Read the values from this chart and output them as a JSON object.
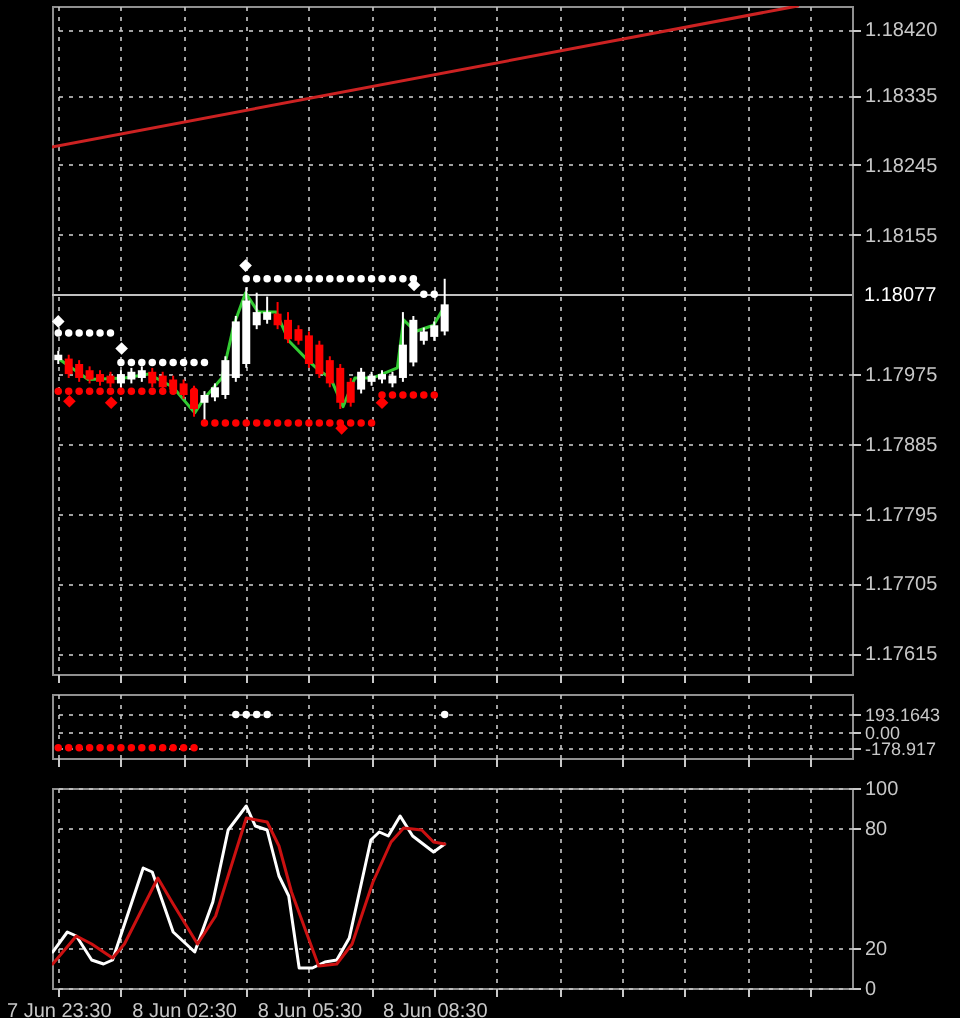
{
  "chart_data": [
    {
      "type": "candlestick",
      "x": [
        "--06-07T23:30",
        "--06-07T23:45",
        "--06-08T00:00",
        "--06-08T00:15",
        "--06-08T00:30",
        "--06-08T00:45",
        "--06-08T01:00",
        "--06-08T01:15",
        "--06-08T01:30",
        "--06-08T01:45",
        "--06-08T02:00",
        "--06-08T02:15",
        "--06-08T02:30",
        "--06-08T02:45",
        "--06-08T03:00",
        "--06-08T03:15",
        "--06-08T03:30",
        "--06-08T03:45",
        "--06-08T04:00",
        "--06-08T04:15",
        "--06-08T04:30",
        "--06-08T04:45",
        "--06-08T05:00",
        "--06-08T05:15",
        "--06-08T05:30",
        "--06-08T05:45",
        "--06-08T06:00",
        "--06-08T06:15",
        "--06-08T06:30",
        "--06-08T06:45",
        "--06-08T07:00",
        "--06-08T07:15",
        "--06-08T07:30",
        "--06-08T07:45",
        "--06-08T08:00",
        "--06-08T08:15",
        "--06-08T08:30",
        "--06-08T08:45"
      ],
      "ohlc": [
        [
          1.17993,
          1.18005,
          1.17988,
          1.18
        ],
        [
          1.17995,
          1.18,
          1.1797,
          1.17975
        ],
        [
          1.17988,
          1.17993,
          1.17965,
          1.1797
        ],
        [
          1.1798,
          1.17985,
          1.17963,
          1.17968
        ],
        [
          1.17975,
          1.1798,
          1.1796,
          1.17965
        ],
        [
          1.17973,
          1.17978,
          1.17958,
          1.17963
        ],
        [
          1.17963,
          1.1798,
          1.17958,
          1.17975
        ],
        [
          1.17968,
          1.17983,
          1.17963,
          1.17978
        ],
        [
          1.1797,
          1.17985,
          1.17965,
          1.1798
        ],
        [
          1.17978,
          1.17983,
          1.17958,
          1.17963
        ],
        [
          1.17973,
          1.17978,
          1.17953,
          1.17958
        ],
        [
          1.17968,
          1.17973,
          1.1795,
          1.17955
        ],
        [
          1.17963,
          1.17968,
          1.17943,
          1.17948
        ],
        [
          1.17955,
          1.1796,
          1.1792,
          1.1793
        ],
        [
          1.17938,
          1.17953,
          1.17913,
          1.17948
        ],
        [
          1.17945,
          1.17963,
          1.1794,
          1.17958
        ],
        [
          1.17948,
          1.17998,
          1.17943,
          1.17993
        ],
        [
          1.1797,
          1.1805,
          1.17965,
          1.18043
        ],
        [
          1.17988,
          1.18087,
          1.17983,
          1.1807
        ],
        [
          1.18038,
          1.1808,
          1.18033,
          1.18055
        ],
        [
          1.18045,
          1.18075,
          1.1804,
          1.18055
        ],
        [
          1.18053,
          1.18068,
          1.18033,
          1.18038
        ],
        [
          1.18045,
          1.18055,
          1.18015,
          1.1802
        ],
        [
          1.18033,
          1.18038,
          1.18013,
          1.18018
        ],
        [
          1.18025,
          1.1803,
          1.17983,
          1.17988
        ],
        [
          1.18013,
          1.18018,
          1.1797,
          1.17975
        ],
        [
          1.17993,
          1.17998,
          1.17958,
          1.17963
        ],
        [
          1.17983,
          1.17988,
          1.1793,
          1.17938
        ],
        [
          1.17965,
          1.1797,
          1.17933,
          1.17938
        ],
        [
          1.17955,
          1.17983,
          1.1795,
          1.17978
        ],
        [
          1.17965,
          1.17978,
          1.1796,
          1.17973
        ],
        [
          1.17968,
          1.1798,
          1.17963,
          1.17975
        ],
        [
          1.17963,
          1.17978,
          1.17958,
          1.17973
        ],
        [
          1.1797,
          1.18055,
          1.17965,
          1.18013
        ],
        [
          1.1799,
          1.1805,
          1.17985,
          1.18045
        ],
        [
          1.18018,
          1.18035,
          1.18013,
          1.1803
        ],
        [
          1.18023,
          1.18043,
          1.18018,
          1.18038
        ],
        [
          1.1803,
          1.18098,
          1.18025,
          1.18065
        ]
      ],
      "colors": [
        "#ffffff",
        "#ff0000",
        "#ff0000",
        "#ff0000",
        "#ff0000",
        "#ff0000",
        "#ffffff",
        "#ffffff",
        "#ffffff",
        "#ff0000",
        "#ff0000",
        "#ff0000",
        "#ff0000",
        "#ff0000",
        "#ffffff",
        "#ffffff",
        "#ffffff",
        "#ffffff",
        "#ffffff",
        "#ffffff",
        "#ffffff",
        "#ff0000",
        "#ff0000",
        "#ff0000",
        "#ff0000",
        "#ff0000",
        "#ff0000",
        "#ff0000",
        "#ff0000",
        "#ffffff",
        "#ffffff",
        "#ffffff",
        "#ffffff",
        "#ffffff",
        "#ffffff",
        "#ffffff",
        "#ffffff",
        "#ffffff"
      ],
      "series": [
        {
          "type": "scatter",
          "marker": "circle",
          "color": "#ffffff",
          "x": [
            "--06-07T23:30",
            "--06-07T23:45",
            "--06-08T00:00",
            "--06-08T00:15",
            "--06-08T00:30",
            "--06-08T00:45",
            "--06-08T01:00",
            "--06-08T01:15",
            "--06-08T01:30",
            "--06-08T01:45",
            "--06-08T02:00",
            "--06-08T02:15",
            "--06-08T02:30",
            "--06-08T02:45",
            "--06-08T03:00",
            "--06-08T04:00",
            "--06-08T04:15",
            "--06-08T04:30",
            "--06-08T04:45",
            "--06-08T05:00",
            "--06-08T05:15",
            "--06-08T05:30",
            "--06-08T05:45",
            "--06-08T06:00",
            "--06-08T06:15",
            "--06-08T06:30",
            "--06-08T06:45",
            "--06-08T07:00",
            "--06-08T07:15",
            "--06-08T07:30",
            "--06-08T07:45",
            "--06-08T08:00",
            "--06-08T08:15",
            "--06-08T08:30"
          ],
          "values": [
            1.18028,
            1.18028,
            1.18028,
            1.18028,
            1.18028,
            1.18028,
            1.1799,
            1.1799,
            1.1799,
            1.1799,
            1.1799,
            1.1799,
            1.1799,
            1.1799,
            1.1799,
            1.18098,
            1.18098,
            1.18098,
            1.18098,
            1.18098,
            1.18098,
            1.18098,
            1.18098,
            1.18098,
            1.18098,
            1.18098,
            1.18098,
            1.18098,
            1.18098,
            1.18098,
            1.18098,
            1.18098,
            1.18078,
            1.18078
          ]
        },
        {
          "type": "scatter",
          "marker": "circle",
          "color": "#ff0000",
          "x": [
            "--06-07T23:30",
            "--06-07T23:45",
            "--06-08T00:00",
            "--06-08T00:15",
            "--06-08T00:30",
            "--06-08T00:45",
            "--06-08T01:00",
            "--06-08T01:15",
            "--06-08T01:30",
            "--06-08T01:45",
            "--06-08T02:00",
            "--06-08T02:15",
            "--06-08T02:30",
            "--06-08T02:45",
            "--06-08T03:00",
            "--06-08T03:15",
            "--06-08T03:30",
            "--06-08T03:45",
            "--06-08T04:00",
            "--06-08T04:15",
            "--06-08T04:30",
            "--06-08T04:45",
            "--06-08T05:00",
            "--06-08T05:15",
            "--06-08T05:30",
            "--06-08T05:45",
            "--06-08T06:00",
            "--06-08T06:15",
            "--06-08T06:30",
            "--06-08T06:45",
            "--06-08T07:00",
            "--06-08T07:15",
            "--06-08T07:30",
            "--06-08T07:45",
            "--06-08T08:00",
            "--06-08T08:15",
            "--06-08T08:30"
          ],
          "values": [
            1.17953,
            1.17953,
            1.17953,
            1.17953,
            1.17953,
            1.17953,
            1.17953,
            1.17953,
            1.17953,
            1.17953,
            1.17953,
            1.17953,
            null,
            1.17953,
            1.17912,
            1.17912,
            1.17912,
            1.17912,
            1.17912,
            1.17912,
            1.17912,
            1.17912,
            1.17912,
            1.17912,
            1.17912,
            1.17912,
            1.17912,
            1.17912,
            1.17912,
            1.17912,
            1.17912,
            1.17948,
            1.17948,
            1.17948,
            1.17948,
            1.17948,
            1.17948
          ]
        },
        {
          "type": "line",
          "line_style": "solid",
          "color": "#33cc33",
          "x": [
            "--06-07T23:30",
            "--06-08T00:13",
            "--06-08T01:05",
            "--06-08T01:40",
            "--06-08T02:15",
            "--06-08T02:46",
            "--06-08T02:59",
            "--06-08T03:25",
            "--06-08T03:42",
            "--06-08T03:59",
            "--06-08T04:17",
            "--06-08T04:43",
            "--06-08T05:01",
            "--06-08T05:26",
            "--06-08T05:44",
            "--06-08T06:01",
            "--06-08T06:19",
            "--06-08T06:36",
            "--06-08T07:02",
            "--06-08T07:37",
            "--06-08T07:46",
            "--06-08T08:03",
            "--06-08T08:29",
            "--06-08T08:45"
          ],
          "values": [
            1.17995,
            1.17968,
            1.1797,
            1.17975,
            1.17958,
            1.17925,
            1.17943,
            1.1797,
            1.18038,
            1.1808,
            1.18055,
            1.18055,
            1.18018,
            1.17995,
            1.1798,
            1.1797,
            1.17933,
            1.1797,
            1.1797,
            1.17983,
            1.18045,
            1.1803,
            1.18038,
            1.18063
          ]
        },
        {
          "type": "line",
          "line_style": "solid",
          "color": "#cc2222",
          "x": [
            "--06-07T23:21",
            "--06-08T17:12"
          ],
          "values": [
            1.18268,
            1.1845
          ]
        },
        {
          "type": "scatter",
          "marker": "diamond",
          "color": "#ffffff",
          "x": [
            "--06-07T23:30",
            "--06-08T01:01",
            "--06-08T03:59",
            "--06-08T08:01"
          ],
          "values": [
            1.18043,
            1.18008,
            1.18115,
            1.1809
          ]
        },
        {
          "type": "scatter",
          "marker": "diamond",
          "color": "#ff0000",
          "x": [
            "--06-07T23:46",
            "--06-08T00:46",
            "--06-08T06:17",
            "--06-08T07:15"
          ],
          "values": [
            1.1794,
            1.17938,
            1.17905,
            1.17938
          ]
        }
      ],
      "xlim": [
        "--06-07T23:21",
        "--06-08T18:30"
      ],
      "xticks": [
        {
          "value": "--06-07T23:30",
          "label": null
        },
        {
          "value": "--06-08T01:00",
          "label": null
        },
        {
          "value": "--06-08T02:30",
          "label": null
        },
        {
          "value": "--06-08T04:00",
          "label": null
        },
        {
          "value": "--06-08T05:30",
          "label": null
        },
        {
          "value": "--06-08T07:00",
          "label": null
        },
        {
          "value": "--06-08T08:30",
          "label": null
        },
        {
          "value": "--06-08T10:00",
          "label": null
        },
        {
          "value": "--06-08T11:30",
          "label": null
        },
        {
          "value": "--06-08T13:00",
          "label": null
        },
        {
          "value": "--06-08T14:30",
          "label": null
        },
        {
          "value": "--06-08T16:00",
          "label": null
        },
        {
          "value": "--06-08T17:30",
          "label": null
        }
      ],
      "ylim": [
        1.17588,
        1.1845
      ],
      "yticks": [
        {
          "value": 1.1842,
          "label": "1.18420"
        },
        1.18335,
        1.18245,
        1.18155,
        1.17975,
        1.17885,
        1.17795,
        1.17705,
        1.17615
      ],
      "ref_lines": [
        {
          "axis": "y",
          "value": 1.18077,
          "label": "1.18077",
          "color": "#c0c0c0"
        }
      ],
      "grid": true,
      "tick_labels": "y"
    },
    {
      "type": "scatter",
      "series": [
        {
          "marker": "circle",
          "color": "#ffffff",
          "x": [
            "--06-08T03:45",
            "--06-08T04:00",
            "--06-08T04:15",
            "--06-08T04:30",
            "--06-08T08:45"
          ],
          "values": [
            193.1643,
            193.1643,
            193.1643,
            193.1643,
            193.1643
          ]
        },
        {
          "marker": "circle",
          "color": "#ff0000",
          "x": [
            "--06-07T23:30",
            "--06-07T23:45",
            "--06-08T00:00",
            "--06-08T00:15",
            "--06-08T00:30",
            "--06-08T00:45",
            "--06-08T01:00",
            "--06-08T01:15",
            "--06-08T01:30",
            "--06-08T01:45",
            "--06-08T02:00",
            "--06-08T02:15",
            "--06-08T02:30",
            "--06-08T02:45"
          ],
          "values": [
            -178.917,
            -178.917,
            -178.917,
            -178.917,
            -178.917,
            -178.917,
            -178.917,
            -178.917,
            -178.917,
            -178.917,
            -178.917,
            -178.917,
            -178.917,
            -178.917
          ]
        }
      ],
      "xlim": [
        "--06-07T23:21",
        "--06-08T18:30"
      ],
      "xticks": [
        {
          "value": "--06-07T23:30",
          "label": null
        },
        {
          "value": "--06-08T01:00",
          "label": null
        },
        {
          "value": "--06-08T02:30",
          "label": null
        },
        {
          "value": "--06-08T04:00",
          "label": null
        },
        {
          "value": "--06-08T05:30",
          "label": null
        },
        {
          "value": "--06-08T07:00",
          "label": null
        },
        {
          "value": "--06-08T08:30",
          "label": null
        },
        {
          "value": "--06-08T10:00",
          "label": null
        },
        {
          "value": "--06-08T11:30",
          "label": null
        },
        {
          "value": "--06-08T13:00",
          "label": null
        },
        {
          "value": "--06-08T14:30",
          "label": null
        },
        {
          "value": "--06-08T16:00",
          "label": null
        },
        {
          "value": "--06-08T17:30",
          "label": null
        }
      ],
      "ylim": [
        -293,
        422
      ],
      "yticks": [
        193.1643,
        {
          "value": 0,
          "label": "0.00"
        },
        -178.917
      ],
      "grid": true,
      "tick_labels": "y"
    },
    {
      "type": "line",
      "series": [
        {
          "color": "#ffffff",
          "x": [
            "--06-07T23:22",
            "--06-07T23:43",
            "--06-07T23:56",
            "--06-08T00:18",
            "--06-08T00:35",
            "--06-08T00:48",
            "--06-08T01:32",
            "--06-08T01:45",
            "--06-08T02:15",
            "--06-08T02:46",
            "--06-08T03:12",
            "--06-08T03:34",
            "--06-08T04:00",
            "--06-08T04:13",
            "--06-08T04:30",
            "--06-08T04:47",
            "--06-08T05:01",
            "--06-08T05:16",
            "--06-08T05:35",
            "--06-08T05:53",
            "--06-08T06:10",
            "--06-08T06:28",
            "--06-08T06:59",
            "--06-08T07:11",
            "--06-08T07:24",
            "--06-08T07:41",
            "--06-08T07:59",
            "--06-08T08:29",
            "--06-08T08:45"
          ],
          "values": [
            18,
            28,
            26,
            14,
            12,
            14,
            60,
            58,
            28,
            18,
            43,
            79,
            91,
            81,
            79,
            56,
            46,
            10,
            10,
            13,
            14,
            25,
            74,
            78,
            76,
            86,
            76,
            68,
            72
          ]
        },
        {
          "color": "#cc1111",
          "x": [
            "--06-07T23:22",
            "--06-07T23:56",
            "--06-08T00:18",
            "--06-08T00:48",
            "--06-08T01:05",
            "--06-08T01:53",
            "--06-08T02:15",
            "--06-08T02:50",
            "--06-08T03:16",
            "--06-08T04:00",
            "--06-08T04:30",
            "--06-08T04:47",
            "--06-08T05:05",
            "--06-08T05:44",
            "--06-08T06:10",
            "--06-08T06:32",
            "--06-08T07:02",
            "--06-08T07:28",
            "--06-08T07:46",
            "--06-08T08:12",
            "--06-08T08:29",
            "--06-08T08:45"
          ],
          "values": [
            12,
            26,
            22,
            15,
            22,
            55,
            42,
            22,
            36,
            85,
            83,
            71,
            48,
            11,
            12,
            22,
            53,
            73,
            80,
            79,
            73,
            72
          ]
        }
      ],
      "xlim": [
        "--06-07T23:21",
        "--06-08T18:30"
      ],
      "xticks": [
        {
          "value": "--06-07T23:30",
          "label": "7 Jun 23:30"
        },
        {
          "value": "--06-08T01:00",
          "label": null
        },
        {
          "value": "--06-08T02:30",
          "label": "8 Jun 02:30"
        },
        {
          "value": "--06-08T04:00",
          "label": null
        },
        {
          "value": "--06-08T05:30",
          "label": "8 Jun 05:30"
        },
        {
          "value": "--06-08T07:00",
          "label": null
        },
        {
          "value": "--06-08T08:30",
          "label": "8 Jun 08:30"
        },
        {
          "value": "--06-08T10:00",
          "label": null
        },
        {
          "value": "--06-08T11:30",
          "label": null
        },
        {
          "value": "--06-08T13:00",
          "label": null
        },
        {
          "value": "--06-08T14:30",
          "label": null
        },
        {
          "value": "--06-08T16:00",
          "label": null
        },
        {
          "value": "--06-08T17:30",
          "label": null
        }
      ],
      "ylim": [
        0,
        100
      ],
      "yticks": [
        100,
        80,
        20,
        0
      ],
      "grid": true
    }
  ]
}
